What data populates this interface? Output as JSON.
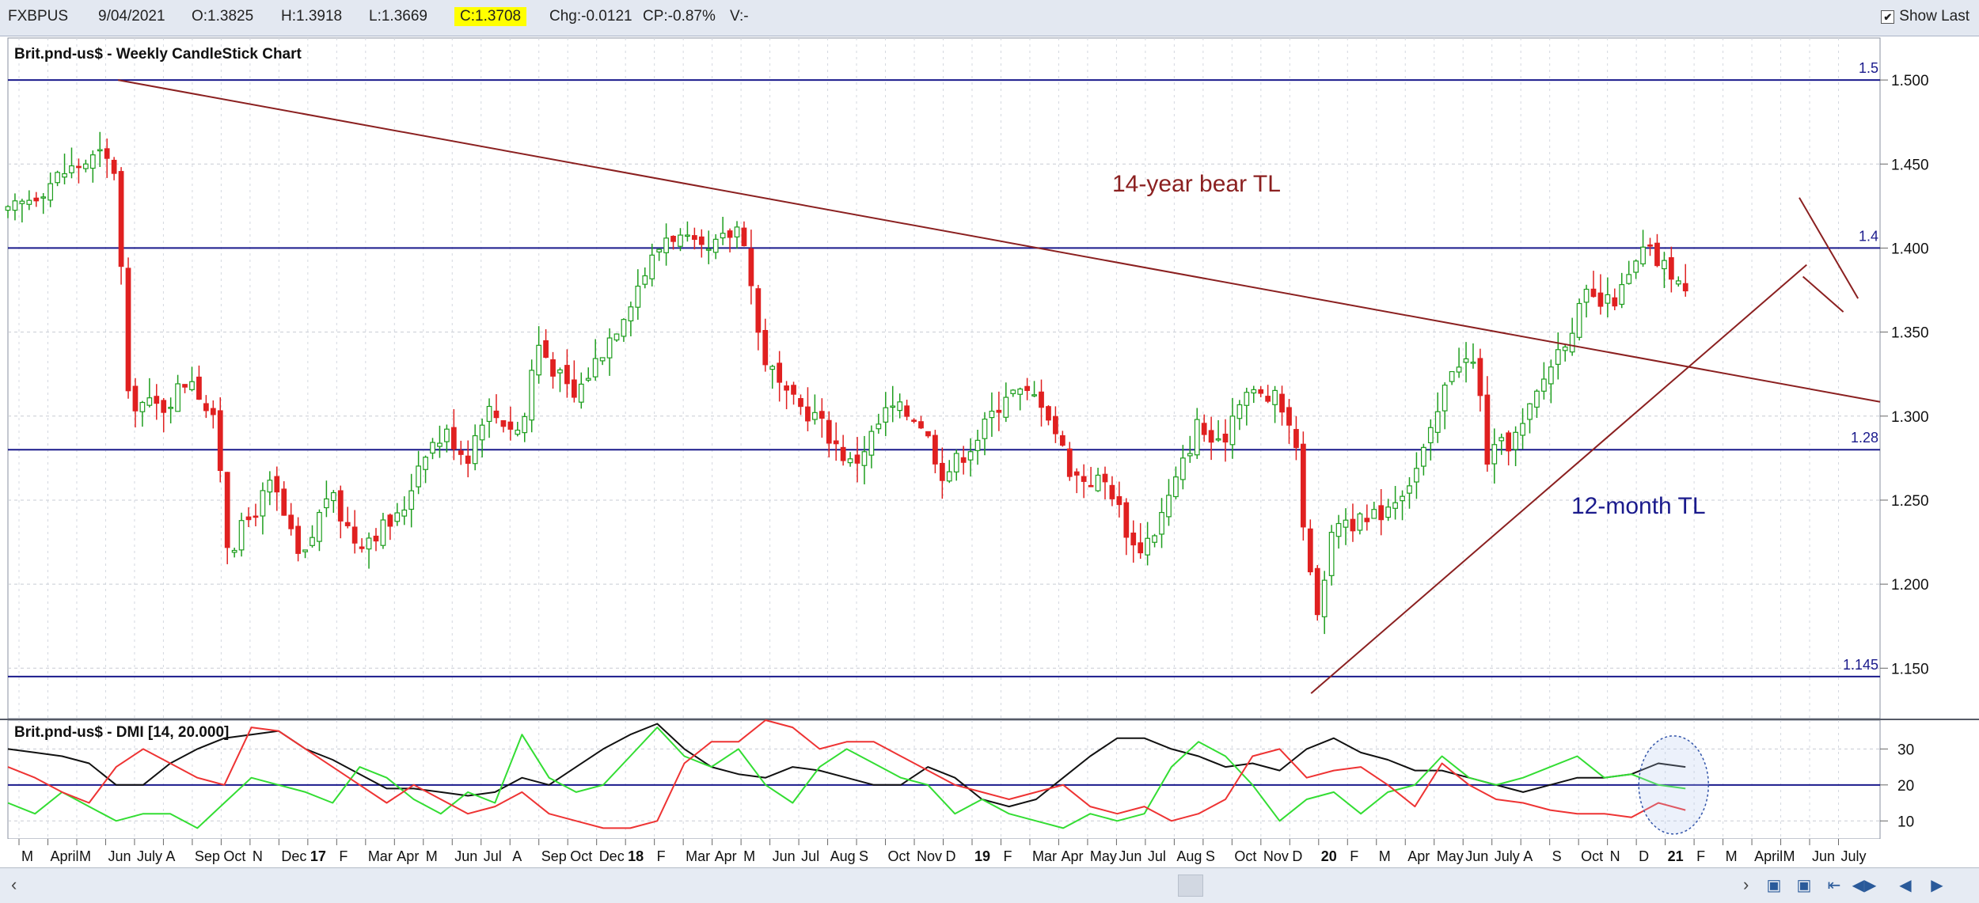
{
  "header": {
    "symbol": "FXBPUS",
    "date": "9/04/2021",
    "open": "O:1.3825",
    "high": "H:1.3918",
    "low": "L:1.3669",
    "close": "C:1.3708",
    "change": "Chg:-0.0121",
    "change_pct": "CP:-0.87%",
    "volume": "V:-",
    "show_last_label": "Show Last",
    "show_last_checked": "✔"
  },
  "colors": {
    "up_candle": "#1e9e1e",
    "down_candle": "#e02020",
    "hline": "#1a1a8c",
    "trendline": "#8b2020",
    "plus_di": "#33dd33",
    "minus_di": "#ee3333",
    "adx": "#111111",
    "highlight": "#ffff00"
  },
  "chart_data": [
    {
      "type": "candlestick",
      "title": "Brit.pnd-us$ - Weekly CandleStick Chart",
      "ylim": [
        1.12,
        1.525
      ],
      "y_ticks": [
        "1.500",
        "1.450",
        "1.400",
        "1.350",
        "1.300",
        "1.250",
        "1.200",
        "1.150"
      ],
      "horizontal_lines": [
        {
          "label": "1.5",
          "value": 1.5
        },
        {
          "label": "1.4",
          "value": 1.4
        },
        {
          "label": "1.28",
          "value": 1.28
        },
        {
          "label": "1.145",
          "value": 1.145
        }
      ],
      "trendlines": [
        {
          "label": "14-year bear TL",
          "from": [
            0.3,
            1.5
          ],
          "to": [
            5.1,
            1.3085
          ]
        },
        {
          "label": "12-month TL",
          "from": [
            3.55,
            1.135
          ],
          "to": [
            4.9,
            1.39
          ]
        }
      ],
      "channel_lines": [
        {
          "from": [
            4.88,
            1.43
          ],
          "to": [
            5.04,
            1.37
          ]
        },
        {
          "from": [
            4.89,
            1.383
          ],
          "to": [
            5.0,
            1.362
          ]
        }
      ],
      "anchors": [
        [
          0.0,
          1.42
        ],
        [
          0.15,
          1.445
        ],
        [
          0.25,
          1.455
        ],
        [
          0.3,
          1.445
        ],
        [
          0.32,
          1.31
        ],
        [
          0.42,
          1.305
        ],
        [
          0.5,
          1.325
        ],
        [
          0.57,
          1.29
        ],
        [
          0.6,
          1.22
        ],
        [
          0.72,
          1.26
        ],
        [
          0.8,
          1.21
        ],
        [
          0.87,
          1.255
        ],
        [
          0.95,
          1.225
        ],
        [
          1.07,
          1.24
        ],
        [
          1.13,
          1.28
        ],
        [
          1.2,
          1.29
        ],
        [
          1.25,
          1.275
        ],
        [
          1.3,
          1.305
        ],
        [
          1.4,
          1.29
        ],
        [
          1.44,
          1.345
        ],
        [
          1.54,
          1.31
        ],
        [
          1.66,
          1.355
        ],
        [
          1.72,
          1.38
        ],
        [
          1.8,
          1.41
        ],
        [
          1.9,
          1.395
        ],
        [
          2.0,
          1.415
        ],
        [
          2.05,
          1.34
        ],
        [
          2.12,
          1.31
        ],
        [
          2.2,
          1.3
        ],
        [
          2.3,
          1.27
        ],
        [
          2.4,
          1.305
        ],
        [
          2.48,
          1.3
        ],
        [
          2.55,
          1.265
        ],
        [
          2.65,
          1.29
        ],
        [
          2.72,
          1.315
        ],
        [
          2.82,
          1.31
        ],
        [
          2.9,
          1.265
        ],
        [
          3.0,
          1.26
        ],
        [
          3.07,
          1.22
        ],
        [
          3.12,
          1.23
        ],
        [
          3.19,
          1.265
        ],
        [
          3.24,
          1.295
        ],
        [
          3.3,
          1.28
        ],
        [
          3.36,
          1.315
        ],
        [
          3.45,
          1.31
        ],
        [
          3.5,
          1.295
        ],
        [
          3.56,
          1.18
        ],
        [
          3.62,
          1.24
        ],
        [
          3.7,
          1.235
        ],
        [
          3.77,
          1.25
        ],
        [
          3.83,
          1.265
        ],
        [
          3.88,
          1.29
        ],
        [
          3.94,
          1.335
        ],
        [
          4.0,
          1.33
        ],
        [
          4.03,
          1.275
        ],
        [
          4.12,
          1.29
        ],
        [
          4.2,
          1.33
        ],
        [
          4.3,
          1.37
        ],
        [
          4.35,
          1.365
        ],
        [
          4.4,
          1.375
        ],
        [
          4.46,
          1.4
        ],
        [
          4.5,
          1.39
        ],
        [
          4.54,
          1.385
        ],
        [
          4.57,
          1.371
        ]
      ],
      "x_ticks": [
        "M",
        "April",
        "M",
        "Jun",
        "July",
        "A",
        "Sep",
        "Oct",
        "N",
        "Dec",
        "17",
        "F",
        "Mar",
        "Apr",
        "M",
        "Jun",
        "Jul",
        "A",
        "Sep",
        "Oct",
        "Dec",
        "18",
        "F",
        "Mar",
        "Apr",
        "M",
        "Jun",
        "Jul",
        "Aug",
        "S",
        "Oct",
        "Nov",
        "D",
        "19",
        "F",
        "Mar",
        "Apr",
        "May",
        "Jun",
        "Jul",
        "Aug",
        "S",
        "Oct",
        "Nov",
        "D",
        "20",
        "F",
        "M",
        "Apr",
        "May",
        "Jun",
        "July",
        "A",
        "S",
        "Oct",
        "N",
        "D",
        "21",
        "F",
        "M",
        "April",
        "M",
        "Jun",
        "July"
      ],
      "bold_ticks": [
        "17",
        "18",
        "19",
        "20",
        "21"
      ],
      "candles": 0
    },
    {
      "type": "line",
      "title": "Brit.pnd-us$ - DMI [14, 20.000]",
      "ylim": [
        5,
        38
      ],
      "y_ticks": [
        "30",
        "20",
        "10"
      ],
      "reference_line": 20,
      "series": [
        {
          "key": "adx",
          "values": [
            30,
            29,
            28,
            26,
            20,
            20,
            26,
            30,
            33,
            34,
            35,
            30,
            27,
            23,
            19,
            19,
            18,
            17,
            18,
            22,
            20,
            25,
            30,
            34,
            37,
            30,
            25,
            23,
            22,
            25,
            24,
            22,
            20,
            20,
            25,
            22,
            16,
            14,
            16,
            22,
            28,
            33,
            33,
            30,
            28,
            25,
            26,
            24,
            30,
            33,
            29,
            27,
            24,
            24,
            22,
            20,
            18,
            20,
            22,
            22,
            23,
            26,
            25
          ]
        },
        {
          "key": "plus_di",
          "values": [
            15,
            12,
            18,
            14,
            10,
            12,
            12,
            8,
            15,
            22,
            20,
            18,
            15,
            25,
            22,
            16,
            12,
            18,
            15,
            34,
            22,
            18,
            20,
            28,
            36,
            28,
            25,
            30,
            20,
            15,
            25,
            30,
            26,
            22,
            20,
            12,
            16,
            12,
            10,
            8,
            12,
            10,
            12,
            25,
            32,
            28,
            20,
            10,
            16,
            18,
            12,
            18,
            20,
            28,
            22,
            20,
            22,
            25,
            28,
            22,
            23,
            20,
            19
          ]
        },
        {
          "key": "minus_di",
          "values": [
            25,
            22,
            18,
            15,
            25,
            30,
            26,
            22,
            20,
            36,
            35,
            30,
            25,
            20,
            15,
            20,
            16,
            12,
            14,
            18,
            12,
            10,
            8,
            8,
            10,
            26,
            32,
            32,
            38,
            36,
            30,
            32,
            32,
            28,
            24,
            20,
            18,
            16,
            18,
            20,
            14,
            12,
            14,
            10,
            12,
            16,
            28,
            30,
            22,
            24,
            25,
            20,
            14,
            26,
            20,
            16,
            15,
            13,
            12,
            12,
            11,
            15,
            13
          ]
        }
      ],
      "annotation": "ellipse highlight on latest readings"
    }
  ],
  "navigation": {
    "scroll_left": "‹",
    "scroll_right": "›",
    "buttons": [
      "zoom-in",
      "zoom-out",
      "jump-back",
      "jump-forward",
      "step-back",
      "step-forward"
    ]
  }
}
